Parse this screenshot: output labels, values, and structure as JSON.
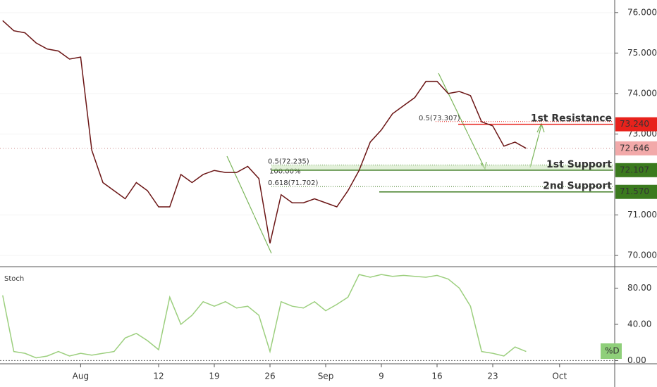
{
  "chart_data": {
    "type": "line",
    "categories": [
      null,
      null,
      null,
      null,
      null,
      null,
      null,
      null,
      "Aug",
      null,
      null,
      null,
      null,
      null,
      null,
      "12",
      null,
      null,
      null,
      null,
      "19",
      null,
      null,
      null,
      null,
      "26",
      null,
      null,
      null,
      null,
      "Sep",
      null,
      null,
      null,
      null,
      "9",
      null,
      null,
      null,
      null,
      "16",
      null,
      null,
      null,
      null,
      "23",
      null,
      null,
      null,
      null,
      null,
      "Oct"
    ],
    "series": [
      {
        "color": "#6b1515",
        "values": [
          null,
          75.8,
          75.55,
          75.5,
          75.25,
          75.1,
          75.05,
          74.85,
          74.9,
          72.6,
          71.8,
          71.6,
          71.4,
          71.8,
          71.6,
          71.2,
          71.2,
          72.0,
          71.8,
          72.0,
          72.1,
          72.05,
          72.05,
          72.2,
          71.9,
          70.3,
          71.5,
          71.3,
          71.3,
          71.4,
          71.3,
          71.2,
          71.6,
          72.1,
          72.8,
          73.1,
          73.5,
          73.7,
          73.9,
          74.3,
          74.3,
          74.0,
          74.05,
          73.95,
          73.3,
          73.2,
          72.7,
          72.8,
          72.646,
          null,
          null,
          null
        ]
      }
    ],
    "ylim": [
      69.74,
      76.31
    ],
    "yticks": [
      {
        "value": 70,
        "label": "70.000"
      },
      {
        "value": 71,
        "label": "71.000"
      },
      {
        "value": 73,
        "label": "73.000"
      },
      {
        "value": 74,
        "label": "74.000"
      },
      {
        "value": 75,
        "label": "75.000"
      },
      {
        "value": 76,
        "label": "76.000"
      }
    ],
    "current_price": {
      "value": 72.646,
      "label": "72.646"
    },
    "levels": [
      {
        "name": "1st Resistance",
        "value": 73.24,
        "label": "73.240",
        "color": "#e8221c"
      },
      {
        "name": "1st Support",
        "value": 72.107,
        "label": "72.107",
        "color": "#3b7a1e"
      },
      {
        "name": "2nd Support",
        "value": 71.57,
        "label": "71.570",
        "color": "#3b7a1e"
      }
    ],
    "fib_levels": [
      {
        "text": "0.5(73.307)",
        "value": 73.307
      },
      {
        "text": "0.5(72.235)",
        "value": 72.235
      },
      {
        "text": "0.618(71.702)",
        "value": 71.702
      }
    ],
    "fib_note": "100.00%",
    "indicator": {
      "title": "Stoch",
      "legend": "%D",
      "color": "#9ccf7e",
      "values": [
        null,
        72,
        10,
        8,
        3,
        5,
        10,
        5,
        8,
        6,
        8,
        10,
        25,
        30,
        22,
        12,
        70,
        40,
        50,
        65,
        60,
        65,
        58,
        60,
        50,
        10,
        65,
        60,
        58,
        65,
        55,
        62,
        70,
        95,
        92,
        95,
        93,
        94,
        93,
        92,
        94,
        90,
        80,
        60,
        10,
        8,
        5,
        15,
        10,
        null,
        null,
        null
      ],
      "ylim": [
        -2,
        99
      ],
      "yticks": [
        {
          "value": 0,
          "label": "0.00"
        },
        {
          "value": 40,
          "label": "40.00"
        },
        {
          "value": 80,
          "label": "80.00"
        }
      ]
    }
  }
}
